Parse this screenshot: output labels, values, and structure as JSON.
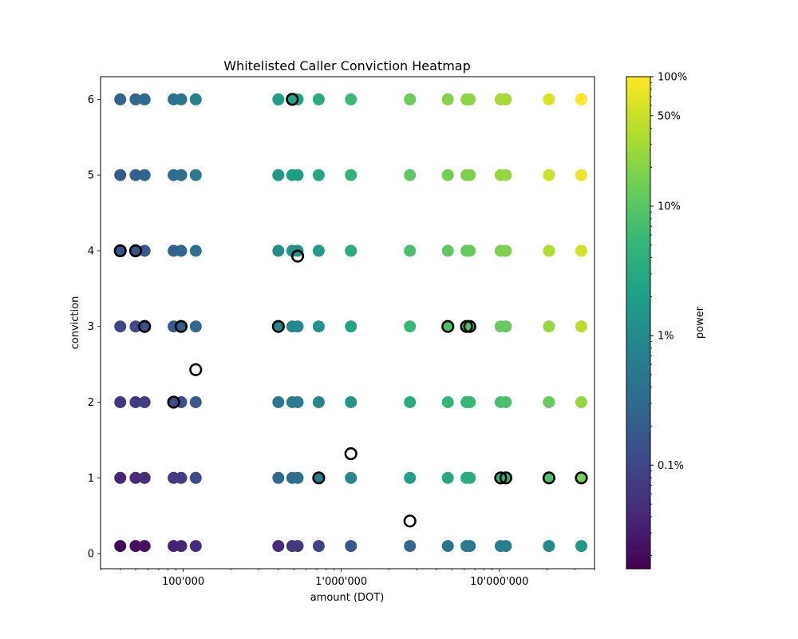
{
  "chart_data": {
    "type": "scatter",
    "title": "Whitelisted Caller Conviction Heatmap",
    "xlabel": "amount (DOT)",
    "ylabel": "conviction",
    "x_scale": "log",
    "xlim": [
      30000,
      40000000
    ],
    "ylim": [
      -0.2,
      6.3
    ],
    "x_tick_labels": [
      {
        "value": 100000,
        "label": "100'000"
      },
      {
        "value": 1000000,
        "label": "1'000'000"
      },
      {
        "value": 10000000,
        "label": "10'000'000"
      }
    ],
    "y_tick_labels": [
      "0",
      "1",
      "2",
      "3",
      "4",
      "5",
      "6"
    ],
    "grid": false,
    "colormap": "viridis",
    "amounts": [
      40000,
      50000,
      57000,
      87000,
      97000,
      120000,
      400000,
      490000,
      530000,
      720000,
      1150000,
      2720000,
      4720000,
      6200000,
      6500000,
      10200000,
      11000000,
      20600000,
      33000000
    ],
    "conviction_rows": [
      {
        "conviction": 0.1,
        "power_log10": [
          -3.75,
          -3.65,
          -3.6,
          -3.45,
          -3.4,
          -3.3,
          -3.35,
          -3.2,
          -3.2,
          -3.0,
          -2.8,
          -2.5,
          -2.35,
          -2.25,
          -2.25,
          -2.2,
          -2.15,
          -2.0,
          -1.8
        ]
      },
      {
        "conviction": 1,
        "power_log10": [
          -3.4,
          -3.35,
          -3.3,
          -3.15,
          -3.1,
          -2.95,
          -2.5,
          -2.4,
          -2.4,
          -2.25,
          -2.0,
          -1.65,
          -1.5,
          -1.45,
          -1.45,
          -1.3,
          -1.3,
          -1.1,
          -0.8
        ]
      },
      {
        "conviction": 2,
        "power_log10": [
          -3.2,
          -3.15,
          -3.1,
          -2.95,
          -2.9,
          -2.75,
          -2.3,
          -2.2,
          -2.2,
          -2.05,
          -1.8,
          -1.45,
          -1.3,
          -1.25,
          -1.25,
          -1.1,
          -1.1,
          -0.9,
          -0.6
        ]
      },
      {
        "conviction": 3,
        "power_log10": [
          -3.0,
          -2.95,
          -2.9,
          -2.75,
          -2.7,
          -2.55,
          -2.1,
          -2.0,
          -2.0,
          -1.85,
          -1.6,
          -1.25,
          -1.1,
          -1.05,
          -1.05,
          -0.9,
          -0.9,
          -0.6,
          -0.4
        ]
      },
      {
        "conviction": 4,
        "power_log10": [
          -2.85,
          -2.8,
          -2.75,
          -2.6,
          -2.55,
          -2.4,
          -1.95,
          -1.85,
          -1.85,
          -1.7,
          -1.45,
          -1.1,
          -0.95,
          -0.9,
          -0.9,
          -0.75,
          -0.75,
          -0.45,
          -0.25
        ]
      },
      {
        "conviction": 5,
        "power_log10": [
          -2.7,
          -2.65,
          -2.6,
          -2.45,
          -2.4,
          -2.25,
          -1.8,
          -1.7,
          -1.7,
          -1.55,
          -1.3,
          -0.95,
          -0.8,
          -0.75,
          -0.75,
          -0.6,
          -0.6,
          -0.3,
          -0.1
        ]
      },
      {
        "conviction": 6,
        "power_log10": [
          -2.6,
          -2.55,
          -2.5,
          -2.35,
          -2.3,
          -2.15,
          -1.7,
          -1.6,
          -1.6,
          -1.45,
          -1.2,
          -0.85,
          -0.7,
          -0.65,
          -0.65,
          -0.5,
          -0.5,
          -0.2,
          0.0
        ]
      }
    ],
    "highlighted_points": [
      {
        "amount": 490000,
        "conviction": 6,
        "filled": true
      },
      {
        "amount": 40000,
        "conviction": 4,
        "filled": true
      },
      {
        "amount": 50000,
        "conviction": 4,
        "filled": true
      },
      {
        "amount": 530000,
        "conviction": 3.93,
        "filled": false
      },
      {
        "amount": 57000,
        "conviction": 3,
        "filled": true
      },
      {
        "amount": 97000,
        "conviction": 3,
        "filled": true
      },
      {
        "amount": 400000,
        "conviction": 3,
        "filled": true
      },
      {
        "amount": 4720000,
        "conviction": 3,
        "filled": true
      },
      {
        "amount": 6200000,
        "conviction": 3,
        "filled": true
      },
      {
        "amount": 6500000,
        "conviction": 3,
        "filled": true
      },
      {
        "amount": 120000,
        "conviction": 2.43,
        "filled": false
      },
      {
        "amount": 87000,
        "conviction": 2,
        "filled": true
      },
      {
        "amount": 1150000,
        "conviction": 1.32,
        "filled": false
      },
      {
        "amount": 720000,
        "conviction": 1,
        "filled": true
      },
      {
        "amount": 10200000,
        "conviction": 1,
        "filled": true
      },
      {
        "amount": 11000000,
        "conviction": 1,
        "filled": true
      },
      {
        "amount": 20600000,
        "conviction": 1,
        "filled": true
      },
      {
        "amount": 33000000,
        "conviction": 1,
        "filled": true
      },
      {
        "amount": 2720000,
        "conviction": 0.43,
        "filled": false
      }
    ],
    "colorbar": {
      "label": "power",
      "scale": "log",
      "range_log10": [
        -3.8,
        0
      ],
      "tick_labels": [
        {
          "value_log10": 0,
          "label": "100%"
        },
        {
          "value_log10": -0.301,
          "label": "50%"
        },
        {
          "value_log10": -1,
          "label": "10%"
        },
        {
          "value_log10": -2,
          "label": "1%"
        },
        {
          "value_log10": -3,
          "label": "0.1%"
        }
      ]
    }
  }
}
